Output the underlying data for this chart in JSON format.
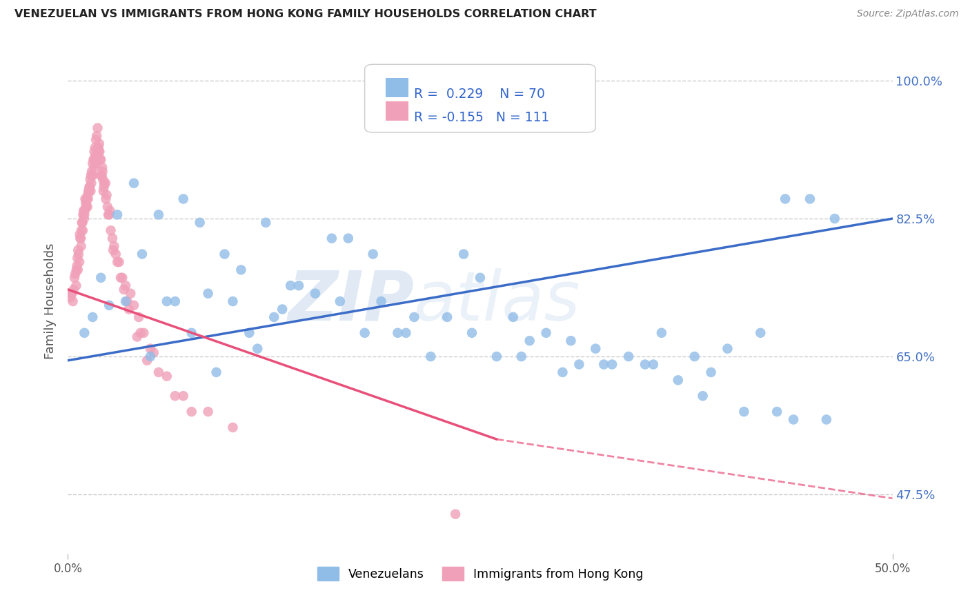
{
  "title": "VENEZUELAN VS IMMIGRANTS FROM HONG KONG FAMILY HOUSEHOLDS CORRELATION CHART",
  "source": "Source: ZipAtlas.com",
  "ylabel": "Family Households",
  "yticks": [
    47.5,
    65.0,
    82.5,
    100.0
  ],
  "ytick_labels": [
    "47.5%",
    "65.0%",
    "82.5%",
    "100.0%"
  ],
  "xmin": 0.0,
  "xmax": 50.0,
  "ymin": 40.0,
  "ymax": 104.0,
  "blue_R": 0.229,
  "blue_N": 70,
  "pink_R": -0.155,
  "pink_N": 111,
  "blue_color": "#90BCE8",
  "pink_color": "#F0A0B8",
  "blue_line_color": "#3B6CC8",
  "pink_line_color": "#E8507A",
  "legend_label_blue": "Venezuelans",
  "legend_label_pink": "Immigrants from Hong Kong",
  "watermark": "ZIPatlas",
  "background_color": "#FFFFFF",
  "blue_line_x0": 0.0,
  "blue_line_x1": 50.0,
  "blue_line_y0": 64.5,
  "blue_line_y1": 82.5,
  "pink_line_x0": 0.0,
  "pink_line_x1": 26.0,
  "pink_line_y0": 73.5,
  "pink_line_y1": 54.5,
  "pink_dash_x0": 26.0,
  "pink_dash_x1": 50.0,
  "pink_dash_y0": 54.5,
  "pink_dash_y1": 47.0,
  "blue_x": [
    1.5,
    2.0,
    3.0,
    4.0,
    5.5,
    7.0,
    8.0,
    9.5,
    10.5,
    12.0,
    13.5,
    15.0,
    17.0,
    18.5,
    20.0,
    22.0,
    24.0,
    25.0,
    27.0,
    29.0,
    30.5,
    32.0,
    34.0,
    36.0,
    38.0,
    40.0,
    42.0,
    43.5,
    45.0,
    46.5,
    1.0,
    2.5,
    4.5,
    6.0,
    8.5,
    10.0,
    11.5,
    13.0,
    16.0,
    19.0,
    21.0,
    23.0,
    26.0,
    28.0,
    31.0,
    33.0,
    35.0,
    37.0,
    39.0,
    41.0,
    44.0,
    3.5,
    5.0,
    7.5,
    9.0,
    11.0,
    14.0,
    16.5,
    20.5,
    24.5,
    27.5,
    30.0,
    32.5,
    35.5,
    38.5,
    43.0,
    46.0,
    6.5,
    12.5,
    18.0
  ],
  "blue_y": [
    70.0,
    75.0,
    83.0,
    87.0,
    83.0,
    85.0,
    82.0,
    78.0,
    76.0,
    82.0,
    74.0,
    73.0,
    80.0,
    78.0,
    68.0,
    65.0,
    78.0,
    75.0,
    70.0,
    68.0,
    67.0,
    66.0,
    65.0,
    68.0,
    65.0,
    66.0,
    68.0,
    85.0,
    85.0,
    82.5,
    68.0,
    71.5,
    78.0,
    72.0,
    73.0,
    72.0,
    66.0,
    71.0,
    80.0,
    72.0,
    70.0,
    70.0,
    65.0,
    67.0,
    64.0,
    64.0,
    64.0,
    62.0,
    63.0,
    58.0,
    57.0,
    72.0,
    65.0,
    68.0,
    63.0,
    68.0,
    74.0,
    72.0,
    68.0,
    68.0,
    65.0,
    63.0,
    64.0,
    64.0,
    60.0,
    58.0,
    57.0,
    72.0,
    70.0,
    68.0
  ],
  "pink_x": [
    0.3,
    0.5,
    0.7,
    0.8,
    0.9,
    1.0,
    1.1,
    1.2,
    1.3,
    1.4,
    1.5,
    1.6,
    1.7,
    1.8,
    1.9,
    2.0,
    2.1,
    2.2,
    2.3,
    2.5,
    2.7,
    2.9,
    3.1,
    3.3,
    3.5,
    3.8,
    4.0,
    4.3,
    4.6,
    5.0,
    0.2,
    0.4,
    0.6,
    0.75,
    0.85,
    0.95,
    1.05,
    1.15,
    1.25,
    1.35,
    1.45,
    1.55,
    1.65,
    1.75,
    1.85,
    1.95,
    2.05,
    2.15,
    2.4,
    2.6,
    2.8,
    3.0,
    3.2,
    3.6,
    4.2,
    0.35,
    0.55,
    0.65,
    0.88,
    1.08,
    1.28,
    1.48,
    1.68,
    1.88,
    2.08,
    2.28,
    2.55,
    3.4,
    4.8,
    5.5,
    6.5,
    7.5,
    0.15,
    0.45,
    0.72,
    0.92,
    1.12,
    1.32,
    1.52,
    1.72,
    1.92,
    2.12,
    2.35,
    2.75,
    0.25,
    0.58,
    0.82,
    1.02,
    1.22,
    1.42,
    1.62,
    1.82,
    2.02,
    0.52,
    0.62,
    0.78,
    0.98,
    1.18,
    1.38,
    1.58,
    1.78,
    2.18,
    2.45,
    3.7,
    4.4,
    5.2,
    6.0,
    7.0,
    8.5,
    10.0,
    23.5
  ],
  "pink_y": [
    72.0,
    74.0,
    77.0,
    79.0,
    81.0,
    83.0,
    84.0,
    85.5,
    86.5,
    88.0,
    89.5,
    91.0,
    92.5,
    94.0,
    92.0,
    90.0,
    88.5,
    87.0,
    85.0,
    83.0,
    80.0,
    78.0,
    77.0,
    75.0,
    74.0,
    73.0,
    71.5,
    70.0,
    68.0,
    66.0,
    73.0,
    75.0,
    76.0,
    80.0,
    82.0,
    83.5,
    85.0,
    85.0,
    86.0,
    87.5,
    88.5,
    90.0,
    91.5,
    93.0,
    91.5,
    90.0,
    88.0,
    86.0,
    84.0,
    81.0,
    79.0,
    77.0,
    75.0,
    72.0,
    67.5,
    73.5,
    76.5,
    78.0,
    82.0,
    84.5,
    86.0,
    88.0,
    90.5,
    91.0,
    89.0,
    87.0,
    83.5,
    73.5,
    64.5,
    63.0,
    60.0,
    58.0,
    72.5,
    75.5,
    80.5,
    83.0,
    84.0,
    86.5,
    88.0,
    89.5,
    91.0,
    87.5,
    85.5,
    78.5,
    73.0,
    77.5,
    81.0,
    83.5,
    85.0,
    87.0,
    90.0,
    91.5,
    88.0,
    76.0,
    78.5,
    80.0,
    82.5,
    84.0,
    86.0,
    89.0,
    90.5,
    86.5,
    83.0,
    71.0,
    68.0,
    65.5,
    62.5,
    60.0,
    58.0,
    56.0,
    45.0
  ]
}
